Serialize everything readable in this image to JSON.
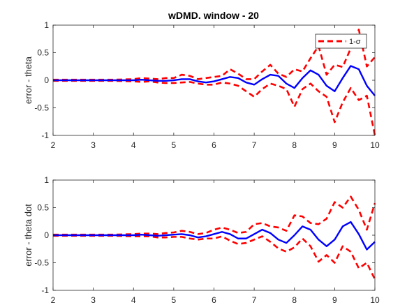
{
  "figure": {
    "title": "wDMD. window - 20"
  },
  "chart_data": [
    {
      "type": "line",
      "title": "wDMD. window - 20",
      "xlabel": "",
      "ylabel": "error - theta",
      "xlim": [
        2,
        10
      ],
      "ylim": [
        -1,
        1
      ],
      "xticks": [
        2,
        3,
        4,
        5,
        6,
        7,
        8,
        9,
        10
      ],
      "yticks": [
        -1,
        -0.5,
        0,
        0.5,
        1
      ],
      "ytick_labels": [
        "-1",
        "-0.5",
        "0",
        "0.5",
        "1"
      ],
      "grid": false,
      "legend": {
        "position": "top-right",
        "entries": [
          "1-σ"
        ]
      },
      "series": [
        {
          "role": "mean",
          "color": "#0000ff",
          "style": "solid",
          "x": [
            2,
            2.5,
            3,
            3.5,
            4,
            4.2,
            4.4,
            4.6,
            4.8,
            5,
            5.2,
            5.4,
            5.6,
            5.8,
            6,
            6.2,
            6.4,
            6.6,
            6.8,
            7,
            7.2,
            7.4,
            7.6,
            7.8,
            8,
            8.2,
            8.4,
            8.6,
            8.8,
            9,
            9.2,
            9.4,
            9.6,
            9.8,
            10
          ],
          "y": [
            0,
            0,
            0,
            0,
            0,
            0.01,
            0,
            -0.01,
            -0.01,
            0,
            0.02,
            0.02,
            -0.02,
            -0.04,
            -0.02,
            0.02,
            0.06,
            0.04,
            -0.04,
            -0.08,
            0.02,
            0.1,
            0.08,
            -0.06,
            -0.14,
            0.04,
            0.18,
            0.1,
            -0.1,
            -0.2,
            0.04,
            0.26,
            0.2,
            -0.1,
            -0.28
          ]
        },
        {
          "role": "upper",
          "name": "1-σ",
          "color": "#ff0000",
          "style": "dashed",
          "x": [
            2,
            2.5,
            3,
            3.5,
            4,
            4.2,
            4.4,
            4.6,
            4.8,
            5,
            5.2,
            5.4,
            5.6,
            5.8,
            6,
            6.2,
            6.4,
            6.6,
            6.8,
            7,
            7.2,
            7.4,
            7.6,
            7.8,
            8,
            8.2,
            8.4,
            8.6,
            8.8,
            9,
            9.2,
            9.4,
            9.6,
            9.8,
            10
          ],
          "y": [
            0.01,
            0.01,
            0.01,
            0.01,
            0.02,
            0.04,
            0.03,
            0.02,
            0.04,
            0.04,
            0.1,
            0.08,
            0.02,
            0.04,
            0.06,
            0.08,
            0.2,
            0.12,
            0.02,
            0.02,
            0.16,
            0.28,
            0.12,
            0.06,
            0.2,
            0.16,
            0.4,
            0.62,
            0.1,
            0.28,
            0.24,
            0.58,
            0.92,
            0.25,
            0.42
          ]
        },
        {
          "role": "lower",
          "color": "#ff0000",
          "style": "dashed",
          "x": [
            2,
            2.5,
            3,
            3.5,
            4,
            4.2,
            4.4,
            4.6,
            4.8,
            5,
            5.2,
            5.4,
            5.6,
            5.8,
            6,
            6.2,
            6.4,
            6.6,
            6.8,
            7,
            7.2,
            7.4,
            7.6,
            7.8,
            8,
            8.2,
            8.4,
            8.6,
            8.8,
            9,
            9.2,
            9.4,
            9.6,
            9.8,
            10
          ],
          "y": [
            -0.01,
            -0.01,
            -0.01,
            -0.01,
            -0.02,
            -0.03,
            -0.02,
            -0.04,
            -0.05,
            -0.05,
            -0.04,
            -0.03,
            -0.06,
            -0.08,
            -0.08,
            -0.04,
            -0.06,
            -0.1,
            -0.2,
            -0.3,
            -0.16,
            -0.06,
            -0.1,
            -0.16,
            -0.48,
            -0.16,
            -0.06,
            -0.2,
            -0.3,
            -0.76,
            -0.4,
            -0.14,
            -0.36,
            -0.28,
            -1.0
          ]
        }
      ]
    },
    {
      "type": "line",
      "title": "",
      "xlabel": "",
      "ylabel": "error - theta dot",
      "xlim": [
        2,
        10
      ],
      "ylim": [
        -1,
        1
      ],
      "xticks": [
        2,
        3,
        4,
        5,
        6,
        7,
        8,
        9,
        10
      ],
      "yticks": [
        -1,
        -0.5,
        0,
        0.5,
        1
      ],
      "ytick_labels": [
        "-1",
        "-0.5",
        "0",
        "0.5",
        "1"
      ],
      "grid": false,
      "series": [
        {
          "role": "mean",
          "color": "#0000ff",
          "style": "solid",
          "x": [
            2,
            2.5,
            3,
            3.5,
            4,
            4.2,
            4.4,
            4.6,
            4.8,
            5,
            5.2,
            5.4,
            5.6,
            5.8,
            6,
            6.2,
            6.4,
            6.6,
            6.8,
            7,
            7.2,
            7.4,
            7.6,
            7.8,
            8,
            8.2,
            8.4,
            8.6,
            8.8,
            9,
            9.2,
            9.4,
            9.6,
            9.8,
            10
          ],
          "y": [
            0,
            0,
            0,
            0,
            0,
            0.01,
            0,
            -0.01,
            0,
            0.01,
            0.02,
            0,
            -0.04,
            -0.02,
            0.02,
            0.06,
            0.02,
            -0.06,
            -0.06,
            0.02,
            0.1,
            0.04,
            -0.08,
            -0.14,
            0,
            0.16,
            0.1,
            -0.08,
            -0.2,
            -0.08,
            0.16,
            0.24,
            0.02,
            -0.26,
            -0.12
          ]
        },
        {
          "role": "upper",
          "color": "#ff0000",
          "style": "dashed",
          "x": [
            2,
            2.5,
            3,
            3.5,
            4,
            4.2,
            4.4,
            4.6,
            4.8,
            5,
            5.2,
            5.4,
            5.6,
            5.8,
            6,
            6.2,
            6.4,
            6.6,
            6.8,
            7,
            7.2,
            7.4,
            7.6,
            7.8,
            8,
            8.2,
            8.4,
            8.6,
            8.8,
            9,
            9.2,
            9.4,
            9.6,
            9.8,
            10
          ],
          "y": [
            0.01,
            0.01,
            0.01,
            0.01,
            0.02,
            0.03,
            0.03,
            0.02,
            0.04,
            0.05,
            0.08,
            0.06,
            0.02,
            0.04,
            0.1,
            0.14,
            0.1,
            0.04,
            0.06,
            0.2,
            0.22,
            0.16,
            0.14,
            0.08,
            0.36,
            0.34,
            0.22,
            0.2,
            0.3,
            0.6,
            0.5,
            0.7,
            0.46,
            0.1,
            0.58
          ]
        },
        {
          "role": "lower",
          "color": "#ff0000",
          "style": "dashed",
          "x": [
            2,
            2.5,
            3,
            3.5,
            4,
            4.2,
            4.4,
            4.6,
            4.8,
            5,
            5.2,
            5.4,
            5.6,
            5.8,
            6,
            6.2,
            6.4,
            6.6,
            6.8,
            7,
            7.2,
            7.4,
            7.6,
            7.8,
            8,
            8.2,
            8.4,
            8.6,
            8.8,
            9,
            9.2,
            9.4,
            9.6,
            9.8,
            10
          ],
          "y": [
            -0.01,
            -0.01,
            -0.01,
            -0.01,
            -0.02,
            -0.02,
            -0.02,
            -0.04,
            -0.04,
            -0.03,
            -0.03,
            -0.06,
            -0.08,
            -0.06,
            -0.06,
            -0.02,
            -0.1,
            -0.16,
            -0.14,
            -0.08,
            -0.02,
            -0.12,
            -0.24,
            -0.3,
            -0.22,
            -0.06,
            -0.2,
            -0.48,
            -0.36,
            -0.5,
            -0.2,
            -0.3,
            -0.6,
            -0.5,
            -0.8
          ]
        }
      ]
    }
  ]
}
